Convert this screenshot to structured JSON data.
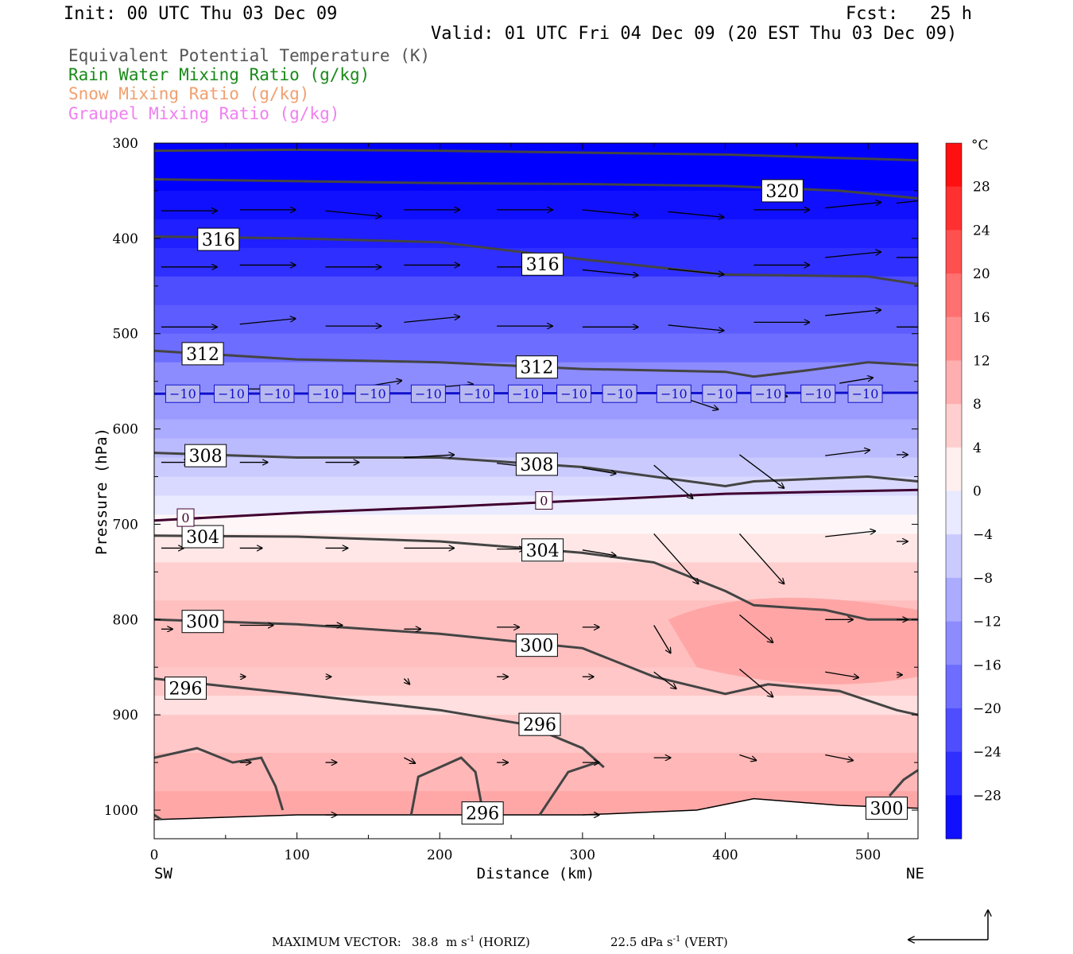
{
  "header": {
    "init": "Init: 00 UTC Thu 03 Dec 09",
    "fcst": "Fcst:   25 h",
    "valid": "Valid: 01 UTC Fri 04 Dec 09 (20 EST Thu 03 Dec 09)"
  },
  "legend": {
    "items": [
      {
        "label": "Equivalent Potential Temperature (K)",
        "color": "#555555"
      },
      {
        "label": "Rain Water Mixing Ratio (g/kg)",
        "color": "#1a8a1a"
      },
      {
        "label": "Snow Mixing Ratio (g/kg)",
        "color": "#f0a070"
      },
      {
        "label": "Graupel Mixing Ratio (g/kg)",
        "color": "#f080f0"
      }
    ]
  },
  "footer": {
    "max_vector_label": "MAXIMUM VECTOR:",
    "horiz_value": "38.8",
    "horiz_unit": "m s",
    "horiz_exp": "-1",
    "horiz_tag": "(HORIZ)",
    "vert_value": "22.5",
    "vert_unit": "dPa s",
    "vert_exp": "-1",
    "vert_tag": "(VERT)"
  },
  "chart_data": {
    "type": "cross-section",
    "xlabel": "Distance (km)",
    "ylabel": "Pressure (hPa)",
    "xlim": [
      0,
      535
    ],
    "ylim": [
      300,
      1030
    ],
    "x_ticks": [
      0,
      100,
      200,
      300,
      400,
      500
    ],
    "y_ticks": [
      300,
      400,
      500,
      600,
      700,
      800,
      900,
      1000
    ],
    "x_end_labels": {
      "left": "SW",
      "right": "NE"
    },
    "colorbar": {
      "unit": "°C",
      "labels": [
        28,
        24,
        20,
        16,
        12,
        8,
        4,
        0,
        -4,
        -8,
        -12,
        -16,
        -20,
        -24,
        -28
      ],
      "range": [
        -32,
        32
      ]
    },
    "theta_e_contours": [
      {
        "label": "320",
        "label_at": [
          440,
          350
        ],
        "points": [
          [
            0,
            308
          ],
          [
            100,
            307
          ],
          [
            200,
            308
          ],
          [
            300,
            310
          ],
          [
            400,
            312
          ],
          [
            535,
            318
          ]
        ]
      },
      {
        "label": "",
        "points": [
          [
            0,
            338
          ],
          [
            100,
            340
          ],
          [
            200,
            342
          ],
          [
            300,
            343
          ],
          [
            400,
            345
          ],
          [
            480,
            350
          ],
          [
            535,
            358
          ]
        ]
      },
      {
        "label": "316",
        "label_at": [
          45,
          401
        ],
        "points": [
          [
            0,
            398
          ],
          [
            100,
            400
          ],
          [
            200,
            404
          ],
          [
            300,
            422
          ],
          [
            400,
            438
          ],
          [
            500,
            440
          ],
          [
            535,
            448
          ]
        ]
      },
      {
        "label": "316",
        "label_at": [
          272,
          427
        ],
        "points": []
      },
      {
        "label": "312",
        "label_at": [
          34,
          521
        ],
        "points": [
          [
            0,
            518
          ],
          [
            100,
            527
          ],
          [
            200,
            530
          ],
          [
            300,
            537
          ],
          [
            400,
            540
          ],
          [
            420,
            545
          ],
          [
            460,
            538
          ],
          [
            500,
            530
          ],
          [
            535,
            533
          ]
        ]
      },
      {
        "label": "312",
        "label_at": [
          268,
          535
        ],
        "points": []
      },
      {
        "label": "308",
        "label_at": [
          36,
          628
        ],
        "points": [
          [
            0,
            625
          ],
          [
            100,
            630
          ],
          [
            200,
            630
          ],
          [
            300,
            640
          ],
          [
            400,
            660
          ],
          [
            420,
            655
          ],
          [
            500,
            650
          ],
          [
            535,
            655
          ]
        ]
      },
      {
        "label": "308",
        "label_at": [
          268,
          637
        ],
        "points": []
      },
      {
        "label": "304",
        "label_at": [
          34,
          713
        ],
        "points": [
          [
            0,
            712
          ],
          [
            100,
            713
          ],
          [
            200,
            718
          ],
          [
            300,
            730
          ],
          [
            350,
            740
          ],
          [
            400,
            770
          ],
          [
            420,
            785
          ],
          [
            470,
            790
          ],
          [
            500,
            800
          ],
          [
            535,
            800
          ]
        ]
      },
      {
        "label": "304",
        "label_at": [
          272,
          727
        ],
        "points": []
      },
      {
        "label": "300",
        "label_at": [
          34,
          802
        ],
        "points": [
          [
            0,
            800
          ],
          [
            100,
            805
          ],
          [
            200,
            815
          ],
          [
            300,
            830
          ],
          [
            350,
            860
          ],
          [
            400,
            878
          ],
          [
            430,
            868
          ],
          [
            480,
            875
          ],
          [
            520,
            895
          ],
          [
            535,
            900
          ]
        ]
      },
      {
        "label": "300",
        "label_at": [
          268,
          827
        ],
        "points": []
      },
      {
        "label": "296",
        "label_at": [
          22,
          872
        ],
        "points": [
          [
            0,
            862
          ],
          [
            50,
            870
          ],
          [
            100,
            878
          ],
          [
            200,
            895
          ],
          [
            260,
            910
          ],
          [
            300,
            935
          ],
          [
            315,
            955
          ]
        ]
      },
      {
        "label": "296",
        "label_at": [
          270,
          910
        ],
        "points": []
      },
      {
        "label": "296",
        "label_at": [
          230,
          1003
        ],
        "points": []
      },
      {
        "label": "300",
        "label_at": [
          513,
          998
        ],
        "points": [
          [
            515,
            985
          ],
          [
            525,
            968
          ],
          [
            535,
            958
          ]
        ]
      }
    ],
    "isotherms": [
      {
        "temp_c": -10,
        "color": "#1010cc",
        "points": [
          [
            0,
            563
          ],
          [
            535,
            562
          ]
        ],
        "label_x": [
          20,
          54,
          86,
          120,
          153,
          192,
          226,
          260,
          294,
          326,
          364,
          396,
          430,
          465,
          498
        ]
      },
      {
        "temp_c": 0,
        "color": "#400030",
        "points": [
          [
            0,
            696
          ],
          [
            100,
            688
          ],
          [
            200,
            682
          ],
          [
            300,
            675
          ],
          [
            400,
            668
          ],
          [
            535,
            664
          ]
        ],
        "label_at": [
          [
            22,
            693
          ],
          [
            273,
            675
          ]
        ]
      }
    ],
    "wind_vectors": [
      {
        "x": 5,
        "p": 371,
        "u": 1.0,
        "w": 0.0
      },
      {
        "x": 60,
        "p": 370,
        "u": 1.0,
        "w": 0.0
      },
      {
        "x": 120,
        "p": 371,
        "u": 1.0,
        "w": 0.1
      },
      {
        "x": 175,
        "p": 370,
        "u": 1.0,
        "w": 0.0
      },
      {
        "x": 240,
        "p": 370,
        "u": 1.0,
        "w": 0.0
      },
      {
        "x": 300,
        "p": 370,
        "u": 1.0,
        "w": 0.1
      },
      {
        "x": 360,
        "p": 372,
        "u": 1.0,
        "w": 0.1
      },
      {
        "x": 420,
        "p": 370,
        "u": 1.0,
        "w": 0.0
      },
      {
        "x": 470,
        "p": 368,
        "u": 1.0,
        "w": -0.1
      },
      {
        "x": 520,
        "p": 363,
        "u": 0.9,
        "w": -0.1
      },
      {
        "x": 5,
        "p": 430,
        "u": 1.0,
        "w": 0.0
      },
      {
        "x": 60,
        "p": 428,
        "u": 1.0,
        "w": 0.0
      },
      {
        "x": 120,
        "p": 430,
        "u": 1.0,
        "w": 0.0
      },
      {
        "x": 175,
        "p": 428,
        "u": 1.0,
        "w": 0.0
      },
      {
        "x": 240,
        "p": 430,
        "u": 1.0,
        "w": 0.0
      },
      {
        "x": 300,
        "p": 433,
        "u": 1.0,
        "w": 0.1
      },
      {
        "x": 360,
        "p": 432,
        "u": 1.0,
        "w": 0.1
      },
      {
        "x": 420,
        "p": 428,
        "u": 1.0,
        "w": 0.0
      },
      {
        "x": 470,
        "p": 420,
        "u": 1.0,
        "w": -0.1
      },
      {
        "x": 520,
        "p": 420,
        "u": 0.5,
        "w": 0.0
      },
      {
        "x": 5,
        "p": 493,
        "u": 1.0,
        "w": 0.0
      },
      {
        "x": 60,
        "p": 490,
        "u": 1.0,
        "w": -0.1
      },
      {
        "x": 120,
        "p": 492,
        "u": 1.0,
        "w": 0.0
      },
      {
        "x": 175,
        "p": 488,
        "u": 1.0,
        "w": -0.1
      },
      {
        "x": 240,
        "p": 492,
        "u": 1.0,
        "w": 0.0
      },
      {
        "x": 300,
        "p": 493,
        "u": 1.0,
        "w": 0.0
      },
      {
        "x": 360,
        "p": 491,
        "u": 1.0,
        "w": 0.1
      },
      {
        "x": 420,
        "p": 488,
        "u": 1.0,
        "w": 0.0
      },
      {
        "x": 470,
        "p": 481,
        "u": 1.0,
        "w": -0.1
      },
      {
        "x": 520,
        "p": 493,
        "u": 0.5,
        "w": 0.0
      },
      {
        "x": 60,
        "p": 558,
        "u": 0.5,
        "w": 0.0
      },
      {
        "x": 150,
        "p": 555,
        "u": 0.6,
        "w": -0.1
      },
      {
        "x": 200,
        "p": 556,
        "u": 0.6,
        "w": -0.05
      },
      {
        "x": 360,
        "p": 562,
        "u": 0.9,
        "w": 0.3
      },
      {
        "x": 420,
        "p": 560,
        "u": 0.6,
        "w": 0.1
      },
      {
        "x": 480,
        "p": 552,
        "u": 0.6,
        "w": -0.1
      },
      {
        "x": 5,
        "p": 635,
        "u": 0.5,
        "w": 0.0
      },
      {
        "x": 60,
        "p": 635,
        "u": 0.5,
        "w": 0.0
      },
      {
        "x": 120,
        "p": 635,
        "u": 0.6,
        "w": 0.0
      },
      {
        "x": 175,
        "p": 630,
        "u": 0.9,
        "w": -0.05
      },
      {
        "x": 240,
        "p": 636,
        "u": 0.9,
        "w": 0.1
      },
      {
        "x": 300,
        "p": 641,
        "u": 0.6,
        "w": 0.1
      },
      {
        "x": 350,
        "p": 638,
        "u": 0.7,
        "w": 0.6
      },
      {
        "x": 410,
        "p": 627,
        "u": 0.8,
        "w": 0.6
      },
      {
        "x": 470,
        "p": 628,
        "u": 0.8,
        "w": -0.1
      },
      {
        "x": 520,
        "p": 627,
        "u": 0.2,
        "w": 0.0
      },
      {
        "x": 5,
        "p": 725,
        "u": 0.4,
        "w": 0.0
      },
      {
        "x": 60,
        "p": 725,
        "u": 0.4,
        "w": 0.0
      },
      {
        "x": 120,
        "p": 725,
        "u": 0.4,
        "w": 0.0
      },
      {
        "x": 175,
        "p": 725,
        "u": 0.9,
        "w": 0.0
      },
      {
        "x": 240,
        "p": 726,
        "u": 0.5,
        "w": 0.0
      },
      {
        "x": 300,
        "p": 727,
        "u": 0.6,
        "w": 0.1
      },
      {
        "x": 350,
        "p": 710,
        "u": 0.8,
        "w": 0.9
      },
      {
        "x": 410,
        "p": 710,
        "u": 0.8,
        "w": 0.9
      },
      {
        "x": 470,
        "p": 713,
        "u": 0.9,
        "w": -0.1
      },
      {
        "x": 520,
        "p": 718,
        "u": 0.2,
        "w": 0.0
      },
      {
        "x": 5,
        "p": 810,
        "u": 0.2,
        "w": 0.0
      },
      {
        "x": 60,
        "p": 806,
        "u": 0.6,
        "w": 0.0
      },
      {
        "x": 120,
        "p": 806,
        "u": 0.3,
        "w": 0.0
      },
      {
        "x": 175,
        "p": 810,
        "u": 0.3,
        "w": 0.0
      },
      {
        "x": 240,
        "p": 808,
        "u": 0.4,
        "w": 0.0
      },
      {
        "x": 300,
        "p": 808,
        "u": 0.3,
        "w": 0.0
      },
      {
        "x": 350,
        "p": 806,
        "u": 0.3,
        "w": 0.5
      },
      {
        "x": 410,
        "p": 795,
        "u": 0.6,
        "w": 0.5
      },
      {
        "x": 470,
        "p": 800,
        "u": 0.5,
        "w": 0.0
      },
      {
        "x": 520,
        "p": 800,
        "u": 0.2,
        "w": 0.0
      },
      {
        "x": 60,
        "p": 860,
        "u": 0.1,
        "w": 0.0
      },
      {
        "x": 120,
        "p": 860,
        "u": 0.1,
        "w": 0.0
      },
      {
        "x": 175,
        "p": 862,
        "u": 0.1,
        "w": 0.1
      },
      {
        "x": 240,
        "p": 860,
        "u": 0.2,
        "w": 0.0
      },
      {
        "x": 300,
        "p": 860,
        "u": 0.2,
        "w": 0.0
      },
      {
        "x": 350,
        "p": 855,
        "u": 0.4,
        "w": 0.3
      },
      {
        "x": 410,
        "p": 852,
        "u": 0.6,
        "w": 0.5
      },
      {
        "x": 470,
        "p": 855,
        "u": 0.6,
        "w": 0.1
      },
      {
        "x": 520,
        "p": 858,
        "u": 0.1,
        "w": 0.0
      },
      {
        "x": 60,
        "p": 950,
        "u": 0.2,
        "w": 0.0
      },
      {
        "x": 120,
        "p": 950,
        "u": 0.2,
        "w": 0.0
      },
      {
        "x": 175,
        "p": 945,
        "u": 0.2,
        "w": 0.1
      },
      {
        "x": 240,
        "p": 950,
        "u": 0.2,
        "w": 0.0
      },
      {
        "x": 300,
        "p": 950,
        "u": 0.3,
        "w": 0.0
      },
      {
        "x": 350,
        "p": 945,
        "u": 0.3,
        "w": 0.0
      },
      {
        "x": 410,
        "p": 942,
        "u": 0.3,
        "w": 0.1
      },
      {
        "x": 470,
        "p": 942,
        "u": 0.5,
        "w": 0.1
      },
      {
        "x": 120,
        "p": 1005,
        "u": 0.2,
        "w": 0.0
      },
      {
        "x": 300,
        "p": 1005,
        "u": 0.3,
        "w": 0.0
      }
    ]
  }
}
